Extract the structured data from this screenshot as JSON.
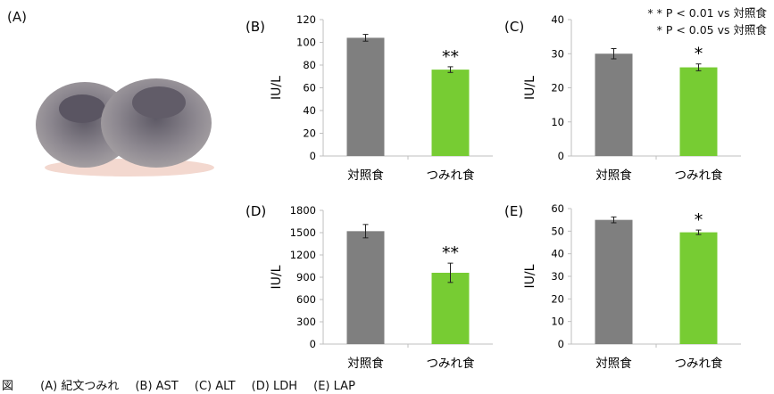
{
  "panel_a": {
    "label": "(A)"
  },
  "notes": {
    "p001": "* * P < 0.01 vs 対照食",
    "p005": "* P < 0.05 vs 対照食"
  },
  "caption": {
    "prefix": "図",
    "items": [
      "(A) 紀文つみれ",
      "(B) AST",
      "(C) ALT",
      "(D) LDH",
      "(E) LAP"
    ]
  },
  "colors": {
    "control": "#7f7f7f",
    "tsumire": "#77cc33",
    "axis": "#bfbfbf"
  },
  "chart_data": [
    {
      "id": "B",
      "panel_label": "(B)",
      "type": "bar",
      "title": "AST",
      "ylabel": "IU/L",
      "categories": [
        "対照食",
        "つみれ食"
      ],
      "values": [
        104,
        76
      ],
      "errors": [
        3,
        2.5
      ],
      "significance": [
        "",
        "**"
      ],
      "ylim": [
        0,
        120
      ],
      "yticks": [
        0,
        20,
        40,
        60,
        80,
        100,
        120
      ],
      "grid": false
    },
    {
      "id": "C",
      "panel_label": "(C)",
      "type": "bar",
      "title": "ALT",
      "ylabel": "IU/L",
      "categories": [
        "対照食",
        "つみれ食"
      ],
      "values": [
        30,
        26
      ],
      "errors": [
        1.5,
        1
      ],
      "significance": [
        "",
        "*"
      ],
      "ylim": [
        0,
        40
      ],
      "yticks": [
        0,
        10,
        20,
        30,
        40
      ],
      "grid": false
    },
    {
      "id": "D",
      "panel_label": "(D)",
      "type": "bar",
      "title": "LDH",
      "ylabel": "IU/L",
      "categories": [
        "対照食",
        "つみれ食"
      ],
      "values": [
        1520,
        960
      ],
      "errors": [
        90,
        130
      ],
      "significance": [
        "",
        "**"
      ],
      "ylim": [
        0,
        1800
      ],
      "yticks": [
        0,
        300,
        600,
        900,
        1200,
        1500,
        1800
      ],
      "grid": false
    },
    {
      "id": "E",
      "panel_label": "(E)",
      "type": "bar",
      "title": "LAP",
      "ylabel": "IU/L",
      "categories": [
        "対照食",
        "つみれ食"
      ],
      "values": [
        55,
        49.5
      ],
      "errors": [
        1.3,
        1
      ],
      "significance": [
        "",
        "*"
      ],
      "ylim": [
        0,
        60
      ],
      "yticks": [
        0,
        10,
        20,
        30,
        40,
        50,
        60
      ],
      "grid": false
    }
  ]
}
